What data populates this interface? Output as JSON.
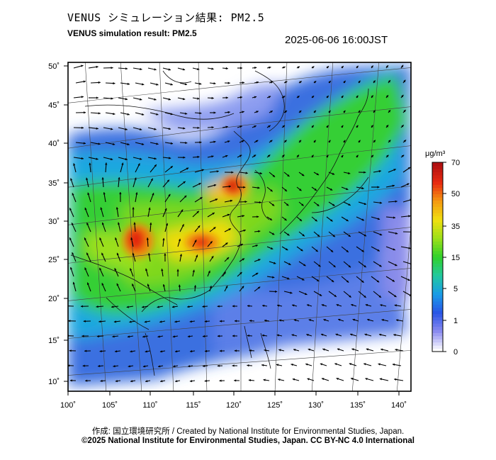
{
  "header": {
    "title_jp": "VENUS シミュレーション結果: PM2.5",
    "title_en": "VENUS simulation result: PM2.5",
    "timestamp": "2025-06-06 16:00JST"
  },
  "axes": {
    "lat_labels": [
      "50˚",
      "45˚",
      "40˚",
      "35˚",
      "30˚",
      "25˚",
      "20˚",
      "15˚",
      "10˚"
    ],
    "lon_labels": [
      "100˚",
      "105˚",
      "110˚",
      "115˚",
      "120˚",
      "125˚",
      "130˚",
      "135˚",
      "140˚"
    ]
  },
  "colorbar": {
    "unit": "μg/m³",
    "tick_labels": [
      "70",
      "50",
      "35",
      "15",
      "5",
      "1",
      "0"
    ],
    "colors": [
      "#ffffff",
      "#8c8cf0",
      "#2a55e6",
      "#1a9be8",
      "#22c8a0",
      "#30d12a",
      "#9be01a",
      "#f0e010",
      "#f59a10",
      "#e82a10",
      "#b01010"
    ]
  },
  "footer": {
    "credit": "作成: 国立環境研究所 / Created by National Institute for Environmental Studies, Japan.",
    "license": "©2025 National Institute for Environmental Studies, Japan. CC BY-NC 4.0 International"
  },
  "map": {
    "type": "pm25-concentration-with-wind-vectors",
    "extent": {
      "lon": [
        100,
        140
      ],
      "lat": [
        10,
        50
      ]
    },
    "hotspots": [
      {
        "name": "sichuan-basin",
        "lon": 107,
        "lat": 29,
        "level": "very-high"
      },
      {
        "name": "central-china",
        "lon": 114,
        "lat": 30,
        "level": "high"
      },
      {
        "name": "north-china-plain",
        "lon": 117,
        "lat": 37,
        "level": "very-high"
      }
    ]
  }
}
